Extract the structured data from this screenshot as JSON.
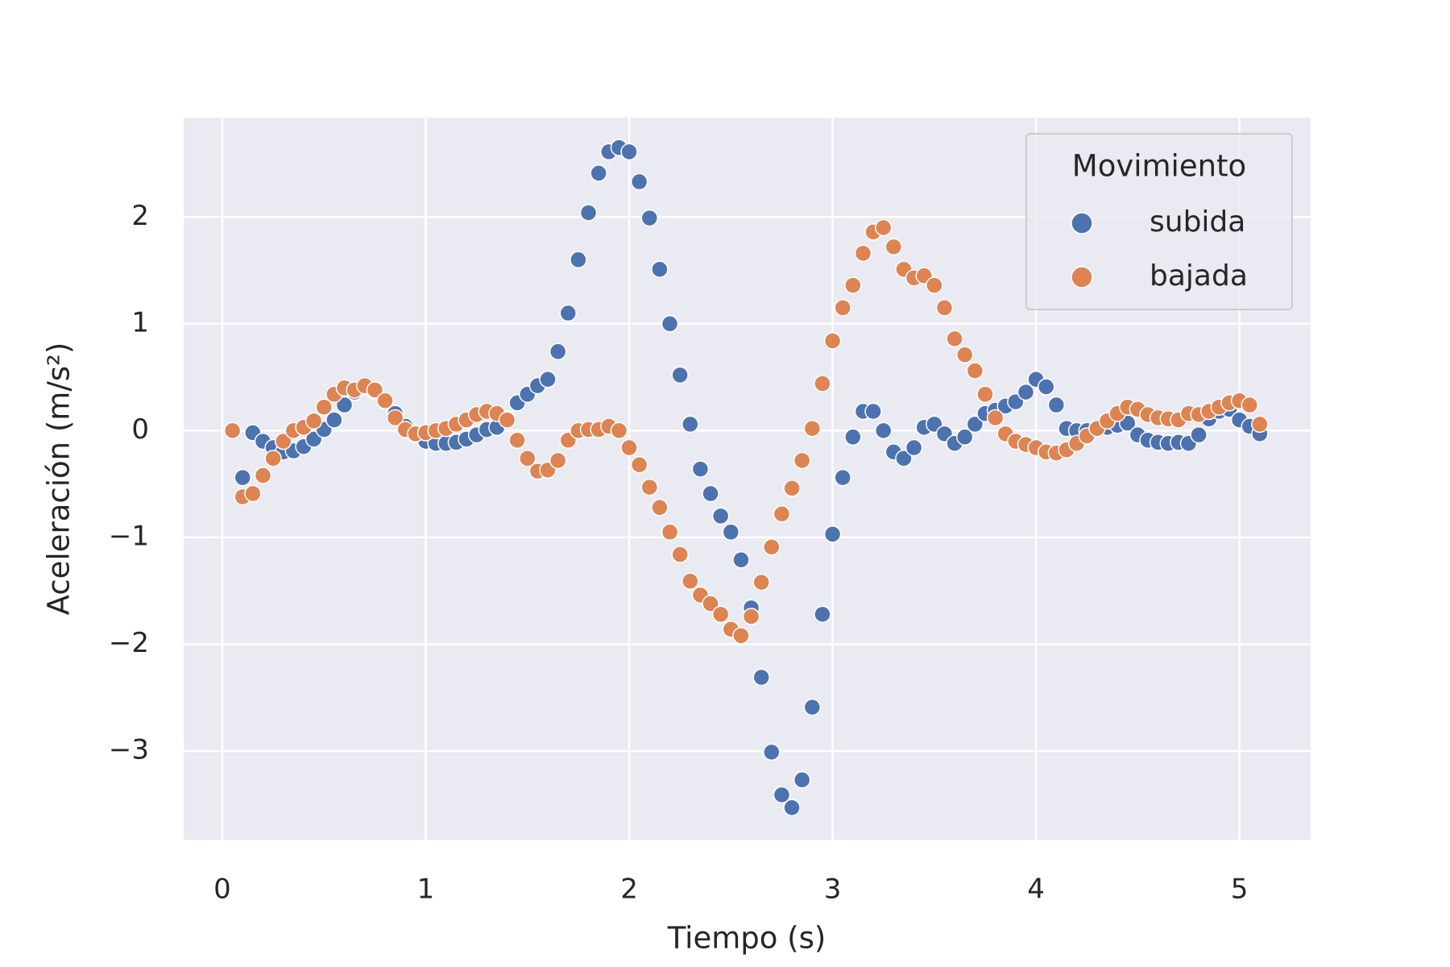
{
  "chart_data": {
    "type": "scatter",
    "x_label": "Tiempo (s)",
    "y_label": "Aceleración (m/s²)",
    "xlim": [
      -0.19,
      5.35
    ],
    "ylim": [
      -3.83,
      2.93
    ],
    "xticks": [
      0,
      1,
      2,
      3,
      4,
      5
    ],
    "yticks": [
      {
        "value": -3,
        "label": "−3"
      },
      {
        "value": -2,
        "label": "−2"
      },
      {
        "value": -1,
        "label": "−1"
      },
      0,
      1,
      2
    ],
    "grid": true,
    "legend": "upper right",
    "legend_title": "Movimiento",
    "series": [
      {
        "name": "subida",
        "color": "#4c72b0",
        "x": [
          0.1,
          0.15,
          0.2,
          0.25,
          0.3,
          0.35,
          0.4,
          0.45,
          0.5,
          0.55,
          0.6,
          0.65,
          0.7,
          0.75,
          0.8,
          0.85,
          0.9,
          0.95,
          1.0,
          1.05,
          1.1,
          1.15,
          1.2,
          1.25,
          1.3,
          1.35,
          1.4,
          1.45,
          1.5,
          1.55,
          1.6,
          1.65,
          1.7,
          1.75,
          1.8,
          1.85,
          1.9,
          1.95,
          2.0,
          2.05,
          2.1,
          2.15,
          2.2,
          2.25,
          2.3,
          2.35,
          2.4,
          2.45,
          2.5,
          2.55,
          2.6,
          2.65,
          2.7,
          2.75,
          2.8,
          2.85,
          2.9,
          2.95,
          3.0,
          3.05,
          3.1,
          3.15,
          3.2,
          3.25,
          3.3,
          3.35,
          3.4,
          3.45,
          3.5,
          3.55,
          3.6,
          3.65,
          3.7,
          3.75,
          3.8,
          3.85,
          3.9,
          3.95,
          4.0,
          4.05,
          4.1,
          4.15,
          4.2,
          4.25,
          4.3,
          4.35,
          4.4,
          4.45,
          4.5,
          4.55,
          4.6,
          4.65,
          4.7,
          4.75,
          4.8,
          4.85,
          4.9,
          4.95,
          5.0,
          5.05,
          5.1
        ],
        "values": [
          -0.44,
          -0.02,
          -0.1,
          -0.16,
          -0.2,
          -0.19,
          -0.15,
          -0.08,
          0.01,
          0.1,
          0.24,
          0.36,
          0.41,
          0.37,
          0.28,
          0.16,
          0.04,
          -0.04,
          -0.1,
          -0.12,
          -0.12,
          -0.11,
          -0.08,
          -0.04,
          0.01,
          0.03,
          0.11,
          0.26,
          0.34,
          0.42,
          0.48,
          0.74,
          1.1,
          1.6,
          2.04,
          2.41,
          2.61,
          2.65,
          2.61,
          2.33,
          1.99,
          1.51,
          1.0,
          0.52,
          0.06,
          -0.36,
          -0.59,
          -0.8,
          -0.95,
          -1.21,
          -1.66,
          -2.31,
          -3.01,
          -3.41,
          -3.53,
          -3.27,
          -2.59,
          -1.72,
          -0.97,
          -0.44,
          -0.06,
          0.18,
          0.18,
          0.0,
          -0.2,
          -0.26,
          -0.16,
          0.03,
          0.06,
          -0.03,
          -0.12,
          -0.06,
          0.06,
          0.16,
          0.19,
          0.23,
          0.27,
          0.36,
          0.48,
          0.41,
          0.24,
          0.02,
          0.0,
          0.0,
          0.02,
          0.03,
          0.05,
          0.07,
          -0.04,
          -0.09,
          -0.11,
          -0.12,
          -0.11,
          -0.12,
          -0.04,
          0.11,
          0.18,
          0.2,
          0.1,
          0.04,
          -0.03
        ]
      },
      {
        "name": "bajada",
        "color": "#dd8452",
        "x": [
          0.05,
          0.1,
          0.15,
          0.2,
          0.25,
          0.3,
          0.35,
          0.4,
          0.45,
          0.5,
          0.55,
          0.6,
          0.65,
          0.7,
          0.75,
          0.8,
          0.85,
          0.9,
          0.95,
          1.0,
          1.05,
          1.1,
          1.15,
          1.2,
          1.25,
          1.3,
          1.35,
          1.4,
          1.45,
          1.5,
          1.55,
          1.6,
          1.65,
          1.7,
          1.75,
          1.8,
          1.85,
          1.9,
          1.95,
          2.0,
          2.05,
          2.1,
          2.15,
          2.2,
          2.25,
          2.3,
          2.35,
          2.4,
          2.45,
          2.5,
          2.55,
          2.6,
          2.65,
          2.7,
          2.75,
          2.8,
          2.85,
          2.9,
          2.95,
          3.0,
          3.05,
          3.1,
          3.15,
          3.2,
          3.25,
          3.3,
          3.35,
          3.4,
          3.45,
          3.5,
          3.55,
          3.6,
          3.65,
          3.7,
          3.75,
          3.8,
          3.85,
          3.9,
          3.95,
          4.0,
          4.05,
          4.1,
          4.15,
          4.2,
          4.25,
          4.3,
          4.35,
          4.4,
          4.45,
          4.5,
          4.55,
          4.6,
          4.65,
          4.7,
          4.75,
          4.8,
          4.85,
          4.9,
          4.95,
          5.0,
          5.05,
          5.1
        ],
        "values": [
          0.0,
          -0.62,
          -0.59,
          -0.42,
          -0.26,
          -0.1,
          0.0,
          0.03,
          0.09,
          0.22,
          0.34,
          0.4,
          0.38,
          0.42,
          0.38,
          0.28,
          0.12,
          0.01,
          -0.03,
          -0.02,
          0.0,
          0.02,
          0.06,
          0.1,
          0.15,
          0.18,
          0.16,
          0.1,
          -0.09,
          -0.26,
          -0.38,
          -0.37,
          -0.28,
          -0.09,
          0.0,
          0.01,
          0.01,
          0.04,
          0.0,
          -0.16,
          -0.32,
          -0.53,
          -0.72,
          -0.95,
          -1.16,
          -1.41,
          -1.54,
          -1.62,
          -1.72,
          -1.86,
          -1.92,
          -1.74,
          -1.42,
          -1.09,
          -0.78,
          -0.54,
          -0.28,
          0.02,
          0.44,
          0.84,
          1.15,
          1.36,
          1.66,
          1.86,
          1.9,
          1.72,
          1.51,
          1.43,
          1.45,
          1.36,
          1.15,
          0.86,
          0.71,
          0.56,
          0.34,
          0.12,
          -0.03,
          -0.1,
          -0.13,
          -0.16,
          -0.2,
          -0.21,
          -0.18,
          -0.12,
          -0.05,
          0.02,
          0.09,
          0.16,
          0.22,
          0.2,
          0.15,
          0.12,
          0.11,
          0.1,
          0.16,
          0.15,
          0.18,
          0.22,
          0.26,
          0.28,
          0.24,
          0.06
        ]
      }
    ]
  }
}
